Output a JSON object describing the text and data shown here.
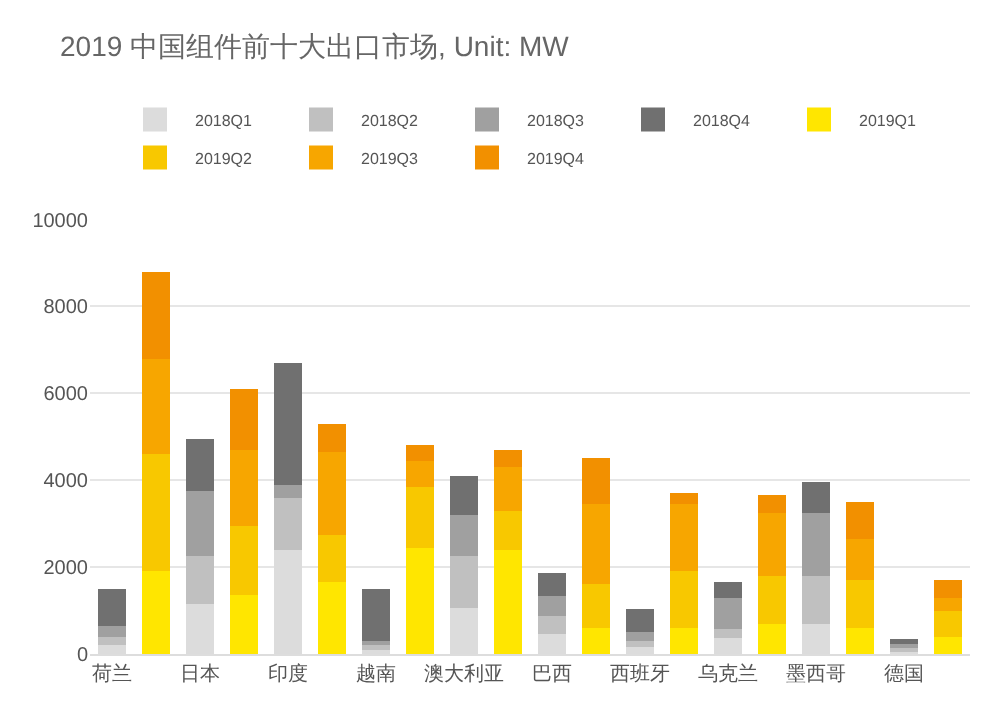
{
  "chart_data": {
    "type": "bar",
    "stacked": true,
    "title": "2019 中国组件前十大出口市场, Unit: MW",
    "categories": [
      "荷兰",
      null,
      "日本",
      null,
      "印度",
      null,
      "越南",
      null,
      "澳大利亚",
      null,
      "巴西",
      null,
      "西班牙",
      null,
      "乌克兰",
      null,
      "墨西哥",
      null,
      "德国",
      null
    ],
    "series": [
      {
        "name": "2018Q1",
        "color": "#dcdcdc",
        "values": [
          200,
          null,
          1150,
          null,
          2400,
          null,
          100,
          null,
          1050,
          null,
          470,
          null,
          150,
          null,
          370,
          null,
          700,
          null,
          80,
          null
        ]
      },
      {
        "name": "2018Q2",
        "color": "#c0c0c0",
        "values": [
          200,
          null,
          1100,
          null,
          1200,
          null,
          100,
          null,
          1200,
          null,
          410,
          null,
          150,
          null,
          200,
          null,
          1100,
          null,
          80,
          null
        ]
      },
      {
        "name": "2018Q3",
        "color": "#a0a0a0",
        "values": [
          250,
          null,
          1500,
          null,
          300,
          null,
          100,
          null,
          950,
          null,
          460,
          null,
          200,
          null,
          730,
          null,
          1450,
          null,
          80,
          null
        ]
      },
      {
        "name": "2018Q4",
        "color": "#707070",
        "values": [
          850,
          null,
          1200,
          null,
          2800,
          null,
          1200,
          null,
          900,
          null,
          530,
          null,
          530,
          null,
          350,
          null,
          700,
          null,
          100,
          null
        ]
      },
      {
        "name": "2019Q1",
        "color": "#ffe600",
        "values": [
          null,
          1900,
          null,
          1350,
          null,
          1650,
          null,
          2450,
          null,
          2400,
          null,
          600,
          null,
          600,
          null,
          700,
          null,
          600,
          null,
          400
        ]
      },
      {
        "name": "2019Q2",
        "color": "#f8c800",
        "values": [
          null,
          2700,
          null,
          1600,
          null,
          1100,
          null,
          1400,
          null,
          900,
          null,
          1000,
          null,
          1300,
          null,
          1100,
          null,
          1100,
          null,
          600
        ]
      },
      {
        "name": "2019Q3",
        "color": "#f7a600",
        "values": [
          null,
          2200,
          null,
          1750,
          null,
          1900,
          null,
          600,
          null,
          1000,
          null,
          1850,
          null,
          1550,
          null,
          1450,
          null,
          950,
          null,
          300
        ]
      },
      {
        "name": "2019Q4",
        "color": "#f29000",
        "values": [
          null,
          2000,
          null,
          1400,
          null,
          650,
          null,
          350,
          null,
          400,
          null,
          1050,
          null,
          250,
          null,
          400,
          null,
          850,
          null,
          400
        ]
      }
    ],
    "ylim": [
      0,
      10000
    ],
    "yticks": [
      0,
      2000,
      4000,
      6000,
      8000,
      10000
    ],
    "grid": "y",
    "legend": "top"
  }
}
